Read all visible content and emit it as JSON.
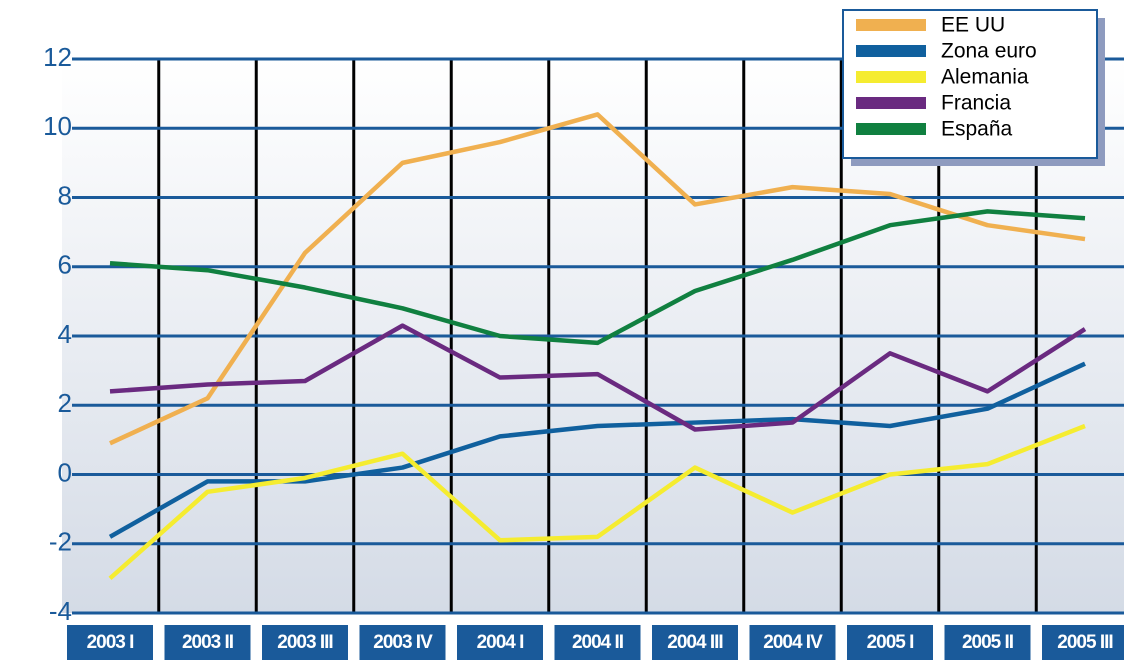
{
  "chart_data": {
    "type": "line",
    "categories": [
      "2003 I",
      "2003 II",
      "2003 III",
      "2003 IV",
      "2004 I",
      "2004 II",
      "2004 III",
      "2004 IV",
      "2005 I",
      "2005 II",
      "2005 III"
    ],
    "series": [
      {
        "name": "EE UU",
        "color": "#f0b050",
        "values": [
          0.9,
          2.2,
          6.4,
          9.0,
          9.6,
          10.4,
          7.8,
          8.3,
          8.1,
          7.2,
          6.8
        ]
      },
      {
        "name": "Zona euro",
        "color": "#10609e",
        "values": [
          -1.8,
          -0.2,
          -0.2,
          0.2,
          1.1,
          1.4,
          1.5,
          1.6,
          1.4,
          1.9,
          3.2
        ]
      },
      {
        "name": "Alemania",
        "color": "#f5ec30",
        "values": [
          -3.0,
          -0.5,
          -0.1,
          0.6,
          -1.9,
          -1.8,
          0.2,
          -1.1,
          0.0,
          0.3,
          1.4
        ]
      },
      {
        "name": "Francia",
        "color": "#6a2a80",
        "values": [
          2.4,
          2.6,
          2.7,
          4.3,
          2.8,
          2.9,
          1.3,
          1.5,
          3.5,
          2.4,
          4.2
        ]
      },
      {
        "name": "España",
        "color": "#108040",
        "values": [
          6.1,
          5.9,
          5.4,
          4.8,
          4.0,
          3.8,
          5.3,
          6.2,
          7.2,
          7.6,
          7.4
        ]
      }
    ],
    "ylim": [
      -4,
      12
    ],
    "yticks": [
      -4,
      -2,
      0,
      2,
      4,
      6,
      8,
      10,
      12
    ],
    "grid": true,
    "legend": "upper right"
  }
}
